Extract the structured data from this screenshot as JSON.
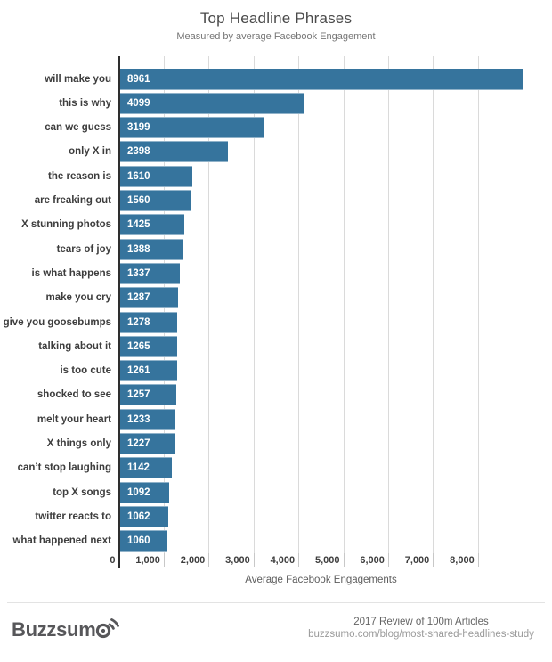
{
  "chart_data": {
    "type": "bar",
    "orientation": "horizontal",
    "title": "Top Headline Phrases",
    "subtitle": "Measured by average Facebook Engagement",
    "xlabel": "Average Facebook Engagements",
    "categories": [
      "will make you",
      "this is why",
      "can we guess",
      "only X in",
      "the reason is",
      "are freaking out",
      "X stunning photos",
      "tears of joy",
      "is what happens",
      "make you cry",
      "give you goosebumps",
      "talking about it",
      "is too cute",
      "shocked to see",
      "melt your heart",
      "X things only",
      "can’t stop laughing",
      "top X songs",
      "twitter reacts to",
      "what happened next"
    ],
    "values": [
      8961,
      4099,
      3199,
      2398,
      1610,
      1560,
      1425,
      1388,
      1337,
      1287,
      1278,
      1265,
      1261,
      1257,
      1233,
      1227,
      1142,
      1092,
      1062,
      1060
    ],
    "xlim": [
      0,
      9200
    ],
    "x_ticks": [
      0,
      1000,
      2000,
      3000,
      4000,
      5000,
      6000,
      7000,
      8000
    ],
    "x_tick_labels": [
      "0",
      "1,000",
      "2,000",
      "3,000",
      "4,000",
      "5,000",
      "6,000",
      "7,000",
      "8,000"
    ],
    "bar_color": "#36749d",
    "grid": true,
    "legend": false
  },
  "footer": {
    "logo_text": "Buzzsum",
    "logo_name": "Buzzsumo",
    "credit_line1": "2017 Review of 100m Articles",
    "credit_line2": "buzzsumo.com/blog/most-shared-headlines-study"
  }
}
